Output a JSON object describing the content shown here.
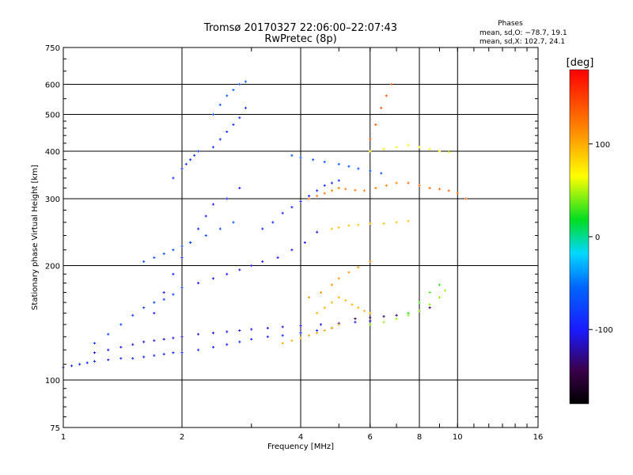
{
  "chart_data": {
    "type": "scatter",
    "title": "Tromsø 20170327 22:06:00–22:07:43",
    "subtitle": "RwPretec (8p)",
    "xlabel": "Frequency [MHz]",
    "ylabel": "Stationary phase Virtual Height [km]",
    "x_scale": "log",
    "y_scale": "log",
    "xlim": [
      1,
      16
    ],
    "ylim": [
      75,
      750
    ],
    "x_ticks": [
      1,
      2,
      4,
      6,
      8,
      10,
      16
    ],
    "y_ticks": [
      75,
      100,
      200,
      300,
      400,
      500,
      600,
      750
    ],
    "grid": true,
    "colorbar": {
      "label": "[deg]",
      "ticks": [
        100,
        0,
        -100
      ],
      "range": [
        -180,
        180
      ]
    },
    "annotation": {
      "title": "Phases",
      "line1": "mean, sd,O: −78.7, 19.1",
      "line2": "mean, sd,X: 102.7, 24.1"
    },
    "series": [
      {
        "phase": -95,
        "x": [
          1.0,
          1.05,
          1.1,
          1.15,
          1.2,
          1.3,
          1.4,
          1.5,
          1.6,
          1.7,
          1.8,
          1.9,
          2.0,
          2.2,
          2.4,
          2.6,
          2.8,
          3.0,
          3.3,
          3.6,
          4.0,
          4.4,
          4.8
        ],
        "y": [
          108,
          109,
          110,
          111,
          112,
          113,
          114,
          114,
          115,
          116,
          117,
          118,
          118,
          120,
          122,
          124,
          126,
          128,
          130,
          131,
          133,
          135,
          137
        ]
      },
      {
        "phase": -110,
        "x": [
          1.2,
          1.3,
          1.4,
          1.5,
          1.6,
          1.7,
          1.8,
          1.9,
          2.0,
          2.2,
          2.4,
          2.6,
          2.8,
          3.0,
          3.3,
          3.6,
          4.0,
          4.5,
          5.0,
          5.5,
          6.0
        ],
        "y": [
          118,
          120,
          122,
          124,
          126,
          127,
          128,
          129,
          130,
          132,
          133,
          134,
          135,
          136,
          137,
          138,
          139,
          140,
          141,
          142,
          143
        ]
      },
      {
        "phase": -80,
        "x": [
          1.2,
          1.3,
          1.4,
          1.5,
          1.6,
          1.7,
          1.8,
          1.9,
          2.0
        ],
        "y": [
          125,
          132,
          140,
          148,
          155,
          160,
          163,
          168,
          175
        ]
      },
      {
        "phase": -100,
        "x": [
          1.7,
          1.8,
          1.9,
          2.0,
          2.1,
          2.2,
          2.3,
          2.4,
          2.6,
          2.8
        ],
        "y": [
          150,
          170,
          190,
          210,
          230,
          250,
          270,
          290,
          300,
          320
        ]
      },
      {
        "phase": -70,
        "x": [
          1.6,
          1.7,
          1.8,
          1.9,
          2.0,
          2.1,
          2.3,
          2.5,
          2.7
        ],
        "y": [
          205,
          210,
          215,
          220,
          225,
          230,
          240,
          250,
          260
        ]
      },
      {
        "phase": -90,
        "x": [
          1.9,
          2.0,
          2.05,
          2.1,
          2.15,
          2.2,
          2.4,
          2.5,
          2.6,
          2.7,
          2.8,
          2.9
        ],
        "y": [
          340,
          360,
          370,
          380,
          390,
          400,
          410,
          430,
          450,
          470,
          490,
          520
        ]
      },
      {
        "phase": -60,
        "x": [
          2.4,
          2.5,
          2.6,
          2.7,
          2.8,
          2.9
        ],
        "y": [
          500,
          530,
          560,
          580,
          600,
          610
        ]
      },
      {
        "phase": -105,
        "x": [
          2.2,
          2.4,
          2.6,
          2.8,
          3.0,
          3.2,
          3.5,
          3.8,
          4.1,
          4.4
        ],
        "y": [
          180,
          185,
          190,
          195,
          200,
          205,
          210,
          220,
          230,
          245
        ]
      },
      {
        "phase": -95,
        "x": [
          3.2,
          3.4,
          3.6,
          3.8,
          4.0,
          4.2,
          4.4,
          4.6,
          4.8,
          5.0
        ],
        "y": [
          250,
          260,
          275,
          285,
          295,
          305,
          315,
          325,
          330,
          335
        ]
      },
      {
        "phase": -65,
        "x": [
          3.8,
          4.0,
          4.3,
          4.6,
          5.0,
          5.3,
          5.6,
          6.0,
          6.4
        ],
        "y": [
          390,
          385,
          380,
          375,
          370,
          365,
          360,
          355,
          350
        ]
      },
      {
        "phase": 120,
        "x": [
          4.2,
          4.4,
          4.6,
          4.8,
          5.0,
          5.2,
          5.5,
          5.8,
          6.2,
          6.6,
          7.0
        ],
        "y": [
          300,
          305,
          310,
          315,
          320,
          318,
          316,
          315,
          320,
          325,
          330
        ]
      },
      {
        "phase": 90,
        "x": [
          4.8,
          5.0,
          5.3,
          5.6,
          6.0,
          6.5,
          7.0,
          7.5
        ],
        "y": [
          250,
          252,
          255,
          256,
          258,
          258,
          260,
          262
        ]
      },
      {
        "phase": 110,
        "x": [
          4.2,
          4.5,
          4.8,
          5.0,
          5.3,
          5.6,
          6.0
        ],
        "y": [
          165,
          170,
          178,
          185,
          192,
          198,
          205
        ]
      },
      {
        "phase": 95,
        "x": [
          4.4,
          4.6,
          4.8,
          5.0,
          5.2,
          5.4,
          5.6,
          5.8,
          6.0
        ],
        "y": [
          150,
          155,
          160,
          165,
          162,
          158,
          155,
          152,
          150
        ]
      },
      {
        "phase": 100,
        "x": [
          3.6,
          3.8,
          4.0,
          4.2,
          4.4,
          4.6,
          4.8,
          5.0
        ],
        "y": [
          125,
          127,
          129,
          131,
          133,
          135,
          137,
          140
        ]
      },
      {
        "phase": -140,
        "x": [
          5.5,
          6.0,
          6.5,
          7.0,
          7.5,
          8.0,
          8.5
        ],
        "y": [
          145,
          146,
          147,
          148,
          150,
          152,
          155
        ]
      },
      {
        "phase": 45,
        "x": [
          6.0,
          6.5,
          7.0,
          7.5,
          8.0,
          8.5,
          9.0,
          9.3
        ],
        "y": [
          140,
          142,
          145,
          148,
          152,
          158,
          165,
          172
        ]
      },
      {
        "phase": 30,
        "x": [
          7.5,
          8.0,
          8.5,
          9.0
        ],
        "y": [
          150,
          160,
          170,
          178
        ]
      },
      {
        "phase": 140,
        "x": [
          6.0,
          6.2,
          6.4,
          6.6,
          6.8
        ],
        "y": [
          430,
          470,
          520,
          560,
          600
        ]
      },
      {
        "phase": 70,
        "x": [
          6.0,
          6.5,
          7.0,
          7.5,
          8.0,
          8.5,
          9.0,
          9.5
        ],
        "y": [
          400,
          405,
          410,
          415,
          410,
          405,
          400,
          398
        ]
      },
      {
        "phase": 130,
        "x": [
          7.5,
          8.0,
          8.5,
          9.0,
          9.5,
          10.0,
          10.5
        ],
        "y": [
          330,
          325,
          320,
          318,
          315,
          310,
          300
        ]
      }
    ]
  }
}
